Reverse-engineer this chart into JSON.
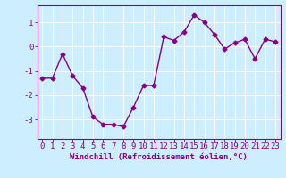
{
  "x": [
    0,
    1,
    2,
    3,
    4,
    5,
    6,
    7,
    8,
    9,
    10,
    11,
    12,
    13,
    14,
    15,
    16,
    17,
    18,
    19,
    20,
    21,
    22,
    23
  ],
  "y": [
    -1.3,
    -1.3,
    -0.3,
    -1.2,
    -1.7,
    -2.9,
    -3.2,
    -3.2,
    -3.3,
    -2.5,
    -1.6,
    -1.6,
    0.4,
    0.25,
    0.6,
    1.3,
    1.0,
    0.5,
    -0.1,
    0.15,
    0.3,
    -0.5,
    0.3,
    0.2
  ],
  "line_color": "#880088",
  "marker": "D",
  "marker_size": 2.5,
  "line_width": 1.0,
  "bg_color": "#cceeff",
  "grid_color": "#ffffff",
  "xlabel": "Windchill (Refroidissement éolien,°C)",
  "xlabel_fontsize": 6.5,
  "xtick_labels": [
    "0",
    "1",
    "2",
    "3",
    "4",
    "5",
    "6",
    "7",
    "8",
    "9",
    "10",
    "11",
    "12",
    "13",
    "14",
    "15",
    "16",
    "17",
    "18",
    "19",
    "20",
    "21",
    "22",
    "23"
  ],
  "ytick_values": [
    -3,
    -2,
    -1,
    0,
    1
  ],
  "ylim": [
    -3.8,
    1.7
  ],
  "xlim": [
    -0.5,
    23.5
  ],
  "tick_color": "#880088",
  "tick_fontsize": 6.5,
  "axis_color": "#880088"
}
